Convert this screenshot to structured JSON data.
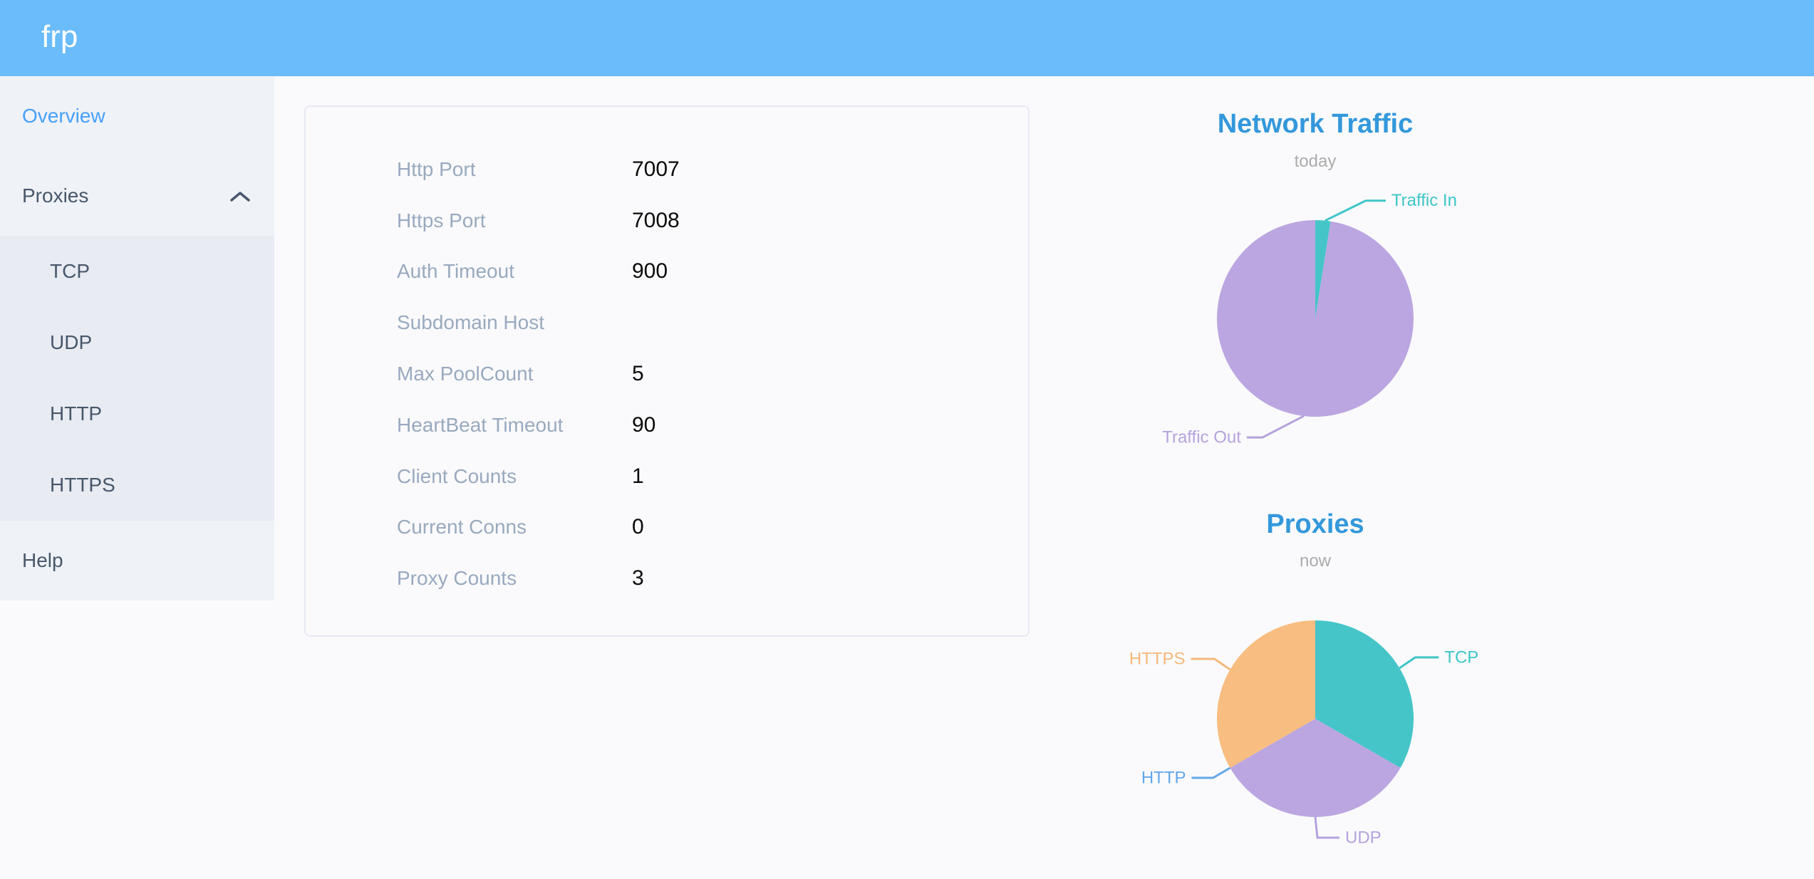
{
  "header": {
    "logo": "frp"
  },
  "sidebar": {
    "items": [
      {
        "label": "Overview",
        "active": true
      },
      {
        "label": "Proxies",
        "expanded": true,
        "children": [
          {
            "label": "TCP"
          },
          {
            "label": "UDP"
          },
          {
            "label": "HTTP"
          },
          {
            "label": "HTTPS"
          }
        ]
      },
      {
        "label": "Help"
      }
    ]
  },
  "overview_card": {
    "rows": [
      {
        "label": "Http Port",
        "value": "7007"
      },
      {
        "label": "Https Port",
        "value": "7008"
      },
      {
        "label": "Auth Timeout",
        "value": "900"
      },
      {
        "label": "Subdomain Host",
        "value": ""
      },
      {
        "label": "Max PoolCount",
        "value": "5"
      },
      {
        "label": "HeartBeat Timeout",
        "value": "90"
      },
      {
        "label": "Client Counts",
        "value": "1"
      },
      {
        "label": "Current Conns",
        "value": "0"
      },
      {
        "label": "Proxy Counts",
        "value": "3"
      }
    ]
  },
  "chart_data": [
    {
      "type": "pie",
      "title": "Network Traffic",
      "subtitle": "today",
      "legend": "none",
      "label_position": "outside",
      "slices": [
        {
          "label": "Traffic In",
          "value": 2.5,
          "approx_share_pct": 2.5,
          "color": "#45C5C8",
          "label_color": "#3EC5C8"
        },
        {
          "label": "Traffic Out",
          "value": 97.5,
          "approx_share_pct": 97.5,
          "color": "#BBA6E1",
          "label_color": "#B5A2DD"
        }
      ]
    },
    {
      "type": "pie",
      "title": "Proxies",
      "subtitle": "now",
      "legend": "none",
      "label_position": "outside",
      "slices": [
        {
          "label": "TCP",
          "value": 1,
          "color": "#45C5C8",
          "label_color": "#3EC5C8"
        },
        {
          "label": "UDP",
          "value": 1,
          "color": "#BBA6E1",
          "label_color": "#B5A2DD"
        },
        {
          "label": "HTTP",
          "value": 0,
          "color": "#63A6E8",
          "label_color": "#63A6E8"
        },
        {
          "label": "HTTPS",
          "value": 1,
          "color": "#F8BD80",
          "label_color": "#F5B87C"
        }
      ]
    }
  ],
  "theme": {
    "header_bg": "#6ABCFA",
    "sidebar_bg": "#EFF2F7",
    "submenu_bg": "#E8EBF2",
    "menu_text": "#48576A",
    "menu_active": "#47A0FA",
    "title_blue": "#3398DB",
    "subtitle_gray": "#ABABAB",
    "card_label": "#99A9BF",
    "card_value": "#0A0A0A",
    "card_border": "#E6E9F2",
    "page_bg": "#FAFAFC"
  }
}
